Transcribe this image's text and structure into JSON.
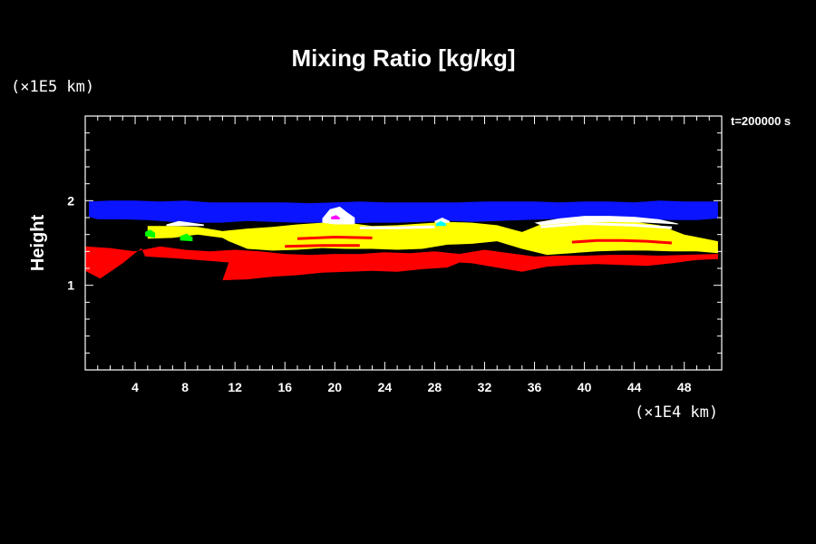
{
  "chart_data": {
    "type": "heatmap",
    "title": "Mixing Ratio [kg/kg]",
    "ylabel": "Height",
    "x_unit": "(×1E4 km)",
    "y_unit": "(×1E5 km)",
    "time_label": "t=200000 s",
    "xlim": [
      0,
      51
    ],
    "ylim": [
      0,
      3
    ],
    "x_ticks": [
      4,
      8,
      12,
      16,
      20,
      24,
      28,
      32,
      36,
      40,
      44,
      48
    ],
    "y_ticks": [
      1,
      2
    ],
    "x_tick_labels": [
      "4",
      "8",
      "12",
      "16",
      "20",
      "24",
      "28",
      "32",
      "36",
      "40",
      "44",
      "48"
    ],
    "y_tick_labels": [
      "1",
      "2"
    ],
    "colors": {
      "blue": "#0a14ff",
      "white": "#ffffff",
      "yellow": "#ffff00",
      "red": "#ff0000",
      "green": "#00ff00",
      "cyan": "#00ffff",
      "magenta": "#ff00ff"
    },
    "layers": [
      {
        "color": "blue",
        "top": [
          [
            0.3,
            1.99
          ],
          [
            2,
            2.0
          ],
          [
            4,
            2.0
          ],
          [
            6,
            1.99
          ],
          [
            8,
            2.0
          ],
          [
            10,
            1.98
          ],
          [
            12,
            1.98
          ],
          [
            14,
            1.98
          ],
          [
            16,
            1.98
          ],
          [
            18,
            1.97
          ],
          [
            20,
            1.98
          ],
          [
            22,
            1.99
          ],
          [
            24,
            1.98
          ],
          [
            26,
            1.98
          ],
          [
            28,
            1.98
          ],
          [
            30,
            1.98
          ],
          [
            32,
            1.99
          ],
          [
            34,
            1.99
          ],
          [
            36,
            1.99
          ],
          [
            38,
            1.98
          ],
          [
            40,
            1.99
          ],
          [
            42,
            1.99
          ],
          [
            44,
            1.98
          ],
          [
            46,
            2.0
          ],
          [
            48,
            1.99
          ],
          [
            50.7,
            1.99
          ]
        ],
        "bottom": [
          [
            50.7,
            1.79
          ],
          [
            49,
            1.77
          ],
          [
            47,
            1.77
          ],
          [
            45,
            1.78
          ],
          [
            43,
            1.79
          ],
          [
            41,
            1.79
          ],
          [
            39,
            1.79
          ],
          [
            37,
            1.78
          ],
          [
            35,
            1.77
          ],
          [
            33,
            1.76
          ],
          [
            31,
            1.75
          ],
          [
            29,
            1.76
          ],
          [
            27,
            1.75
          ],
          [
            25,
            1.74
          ],
          [
            23,
            1.74
          ],
          [
            21,
            1.73
          ],
          [
            19,
            1.74
          ],
          [
            17,
            1.74
          ],
          [
            15,
            1.75
          ],
          [
            13,
            1.76
          ],
          [
            11,
            1.74
          ],
          [
            9,
            1.74
          ],
          [
            7,
            1.75
          ],
          [
            5,
            1.77
          ],
          [
            3,
            1.78
          ],
          [
            1,
            1.78
          ],
          [
            0.3,
            1.81
          ]
        ]
      },
      {
        "color": "red",
        "top": [
          [
            0,
            1.46
          ],
          [
            2,
            1.44
          ],
          [
            4,
            1.4
          ],
          [
            6,
            1.46
          ],
          [
            8,
            1.42
          ],
          [
            10,
            1.4
          ],
          [
            12,
            1.42
          ],
          [
            14,
            1.4
          ],
          [
            16,
            1.37
          ],
          [
            18,
            1.36
          ],
          [
            20,
            1.37
          ],
          [
            22,
            1.37
          ],
          [
            24,
            1.39
          ],
          [
            26,
            1.38
          ],
          [
            28,
            1.4
          ],
          [
            30,
            1.37
          ],
          [
            32,
            1.42
          ],
          [
            34,
            1.38
          ],
          [
            36,
            1.34
          ],
          [
            38,
            1.35
          ],
          [
            40,
            1.35
          ],
          [
            42,
            1.36
          ],
          [
            44,
            1.36
          ],
          [
            46,
            1.35
          ],
          [
            48,
            1.36
          ],
          [
            50.7,
            1.37
          ]
        ],
        "bottom": [
          [
            50.7,
            1.31
          ],
          [
            49,
            1.3
          ],
          [
            47,
            1.26
          ],
          [
            45,
            1.23
          ],
          [
            43,
            1.24
          ],
          [
            41,
            1.25
          ],
          [
            39,
            1.24
          ],
          [
            37,
            1.22
          ],
          [
            35,
            1.16
          ],
          [
            33,
            1.21
          ],
          [
            31,
            1.26
          ],
          [
            30,
            1.27
          ],
          [
            29,
            1.21
          ],
          [
            27,
            1.19
          ],
          [
            25,
            1.16
          ],
          [
            23,
            1.17
          ],
          [
            21,
            1.16
          ],
          [
            19,
            1.15
          ],
          [
            17,
            1.12
          ],
          [
            15,
            1.1
          ],
          [
            13,
            1.07
          ],
          [
            11,
            1.06
          ],
          [
            11.5,
            1.27
          ],
          [
            9,
            1.3
          ],
          [
            7,
            1.32
          ],
          [
            4.8,
            1.34
          ],
          [
            4.5,
            1.44
          ],
          [
            3,
            1.26
          ],
          [
            1.2,
            1.08
          ],
          [
            0,
            1.17
          ]
        ]
      },
      {
        "color": "yellow",
        "top": [
          [
            5,
            1.7
          ],
          [
            7,
            1.7
          ],
          [
            9,
            1.69
          ],
          [
            11,
            1.64
          ],
          [
            13,
            1.67
          ],
          [
            15,
            1.69
          ],
          [
            17,
            1.72
          ],
          [
            19,
            1.74
          ],
          [
            21,
            1.74
          ],
          [
            23,
            1.7
          ],
          [
            25,
            1.71
          ],
          [
            27,
            1.73
          ],
          [
            29,
            1.75
          ],
          [
            31,
            1.74
          ],
          [
            33,
            1.71
          ],
          [
            35,
            1.63
          ],
          [
            36.5,
            1.72
          ],
          [
            38,
            1.74
          ],
          [
            40,
            1.76
          ],
          [
            42,
            1.76
          ],
          [
            44,
            1.75
          ],
          [
            46,
            1.71
          ],
          [
            48,
            1.6
          ],
          [
            50.7,
            1.52
          ]
        ],
        "bottom": [
          [
            50.7,
            1.38
          ],
          [
            49,
            1.4
          ],
          [
            47,
            1.4
          ],
          [
            45,
            1.41
          ],
          [
            43,
            1.41
          ],
          [
            41,
            1.4
          ],
          [
            39,
            1.38
          ],
          [
            37,
            1.36
          ],
          [
            35,
            1.43
          ],
          [
            33,
            1.52
          ],
          [
            31,
            1.49
          ],
          [
            29,
            1.48
          ],
          [
            27,
            1.43
          ],
          [
            25,
            1.42
          ],
          [
            23,
            1.43
          ],
          [
            21,
            1.43
          ],
          [
            19,
            1.44
          ],
          [
            17,
            1.42
          ],
          [
            15,
            1.41
          ],
          [
            13,
            1.43
          ],
          [
            11.5,
            1.52
          ],
          [
            11,
            1.56
          ],
          [
            9,
            1.6
          ],
          [
            7,
            1.56
          ],
          [
            5,
            1.55
          ]
        ]
      },
      {
        "color": "white",
        "top": [
          [
            36,
            1.74
          ],
          [
            38,
            1.79
          ],
          [
            40,
            1.82
          ],
          [
            42,
            1.82
          ],
          [
            44,
            1.81
          ],
          [
            46,
            1.78
          ],
          [
            47.5,
            1.73
          ]
        ],
        "bottom": [
          [
            47.5,
            1.72
          ],
          [
            45,
            1.74
          ],
          [
            42,
            1.75
          ],
          [
            39,
            1.74
          ],
          [
            36.5,
            1.71
          ]
        ]
      },
      {
        "color": "white",
        "top": [
          [
            19,
            1.79
          ],
          [
            19.6,
            1.9
          ],
          [
            20.4,
            1.93
          ],
          [
            21,
            1.86
          ],
          [
            21.6,
            1.8
          ]
        ],
        "bottom": [
          [
            21.6,
            1.72
          ],
          [
            20,
            1.72
          ],
          [
            19,
            1.74
          ]
        ]
      },
      {
        "color": "white",
        "top": [
          [
            6.5,
            1.72
          ],
          [
            7.5,
            1.76
          ],
          [
            8.5,
            1.74
          ],
          [
            9.5,
            1.72
          ]
        ],
        "bottom": [
          [
            9.5,
            1.7
          ],
          [
            8,
            1.7
          ],
          [
            6.5,
            1.7
          ]
        ]
      },
      {
        "color": "white",
        "top": [
          [
            28,
            1.76
          ],
          [
            28.6,
            1.8
          ],
          [
            29.2,
            1.76
          ]
        ],
        "bottom": [
          [
            29.2,
            1.74
          ],
          [
            28,
            1.74
          ]
        ]
      },
      {
        "color": "green",
        "top": [
          [
            4.8,
            1.63
          ],
          [
            5.2,
            1.66
          ],
          [
            5.6,
            1.62
          ]
        ],
        "bottom": [
          [
            5.6,
            1.56
          ],
          [
            4.8,
            1.58
          ]
        ]
      },
      {
        "color": "green",
        "top": [
          [
            7.6,
            1.58
          ],
          [
            8.1,
            1.61
          ],
          [
            8.6,
            1.57
          ]
        ],
        "bottom": [
          [
            8.6,
            1.52
          ],
          [
            7.6,
            1.53
          ]
        ]
      },
      {
        "color": "cyan",
        "top": [
          [
            28.1,
            1.73
          ],
          [
            28.5,
            1.76
          ],
          [
            28.9,
            1.73
          ]
        ],
        "bottom": [
          [
            28.9,
            1.7
          ],
          [
            28.1,
            1.7
          ]
        ]
      },
      {
        "color": "magenta",
        "top": [
          [
            19.7,
            1.81
          ],
          [
            20.1,
            1.83
          ],
          [
            20.4,
            1.8
          ]
        ],
        "bottom": [
          [
            20.4,
            1.78
          ],
          [
            19.7,
            1.78
          ]
        ]
      }
    ],
    "stripes": [
      {
        "color": "white",
        "points": [
          [
            36.5,
            1.69
          ],
          [
            40,
            1.73
          ],
          [
            44,
            1.71
          ],
          [
            47,
            1.68
          ]
        ]
      },
      {
        "color": "red",
        "points": [
          [
            39,
            1.51
          ],
          [
            41,
            1.53
          ],
          [
            43,
            1.53
          ],
          [
            45,
            1.52
          ],
          [
            47,
            1.5
          ]
        ]
      },
      {
        "color": "red",
        "points": [
          [
            16,
            1.46
          ],
          [
            19,
            1.47
          ],
          [
            22,
            1.47
          ]
        ]
      },
      {
        "color": "red",
        "points": [
          [
            17,
            1.55
          ],
          [
            20,
            1.57
          ],
          [
            23,
            1.56
          ]
        ]
      },
      {
        "color": "white",
        "points": [
          [
            22,
            1.68
          ],
          [
            25,
            1.68
          ],
          [
            28,
            1.69
          ]
        ]
      }
    ],
    "grid": false
  }
}
